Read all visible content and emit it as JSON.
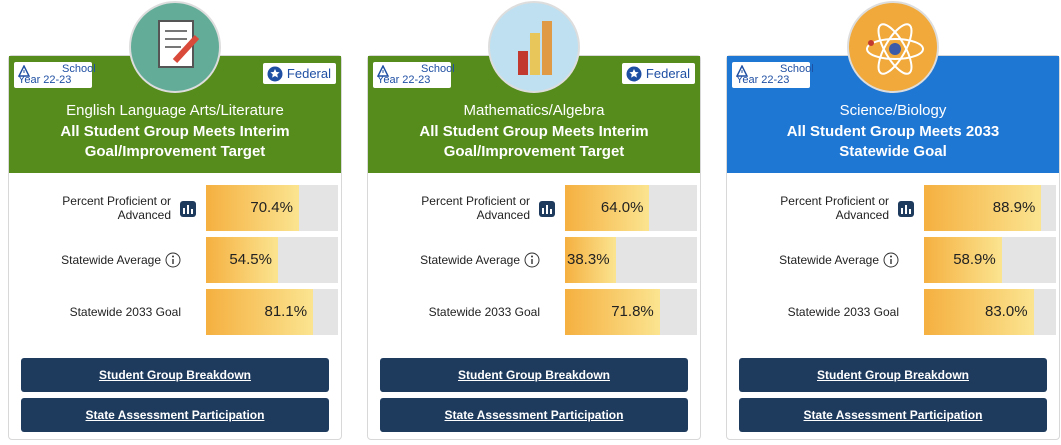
{
  "cards": [
    {
      "badge_line1": "School",
      "badge_line2": "Year 22-23",
      "federal": "Federal",
      "subject": "English Language Arts/Literature",
      "status": "All Student Group Meets Interim Goal/Improvement Target",
      "header_color": "#568c1c",
      "icon_color": "#63ad98",
      "metrics": [
        {
          "label": "Percent Proficient or Advanced",
          "value": 70.4,
          "value_label": "70.4%"
        },
        {
          "label": "Statewide Average",
          "value": 54.5,
          "value_label": "54.5%"
        },
        {
          "label": "Statewide 2033 Goal",
          "value": 81.1,
          "value_label": "81.1%"
        }
      ],
      "buttons": [
        "Student Group Breakdown",
        "State Assessment Participation"
      ]
    },
    {
      "badge_line1": "School",
      "badge_line2": "Year 22-23",
      "federal": "Federal",
      "subject": "Mathematics/Algebra",
      "status": "All Student Group Meets Interim Goal/Improvement Target",
      "header_color": "#568c1c",
      "icon_color": "#bfe0f0",
      "metrics": [
        {
          "label": "Percent Proficient or Advanced",
          "value": 64.0,
          "value_label": "64.0%"
        },
        {
          "label": "Statewide Average",
          "value": 38.3,
          "value_label": "38.3%"
        },
        {
          "label": "Statewide 2033 Goal",
          "value": 71.8,
          "value_label": "71.8%"
        }
      ],
      "buttons": [
        "Student Group Breakdown",
        "State Assessment Participation"
      ]
    },
    {
      "badge_line1": "School",
      "badge_line2": "Year 22-23",
      "subject": "Science/Biology",
      "status": "All Student Group Meets 2033 Statewide Goal",
      "header_color": "#1f77d4",
      "icon_color": "#f0a93a",
      "metrics": [
        {
          "label": "Percent Proficient or Advanced",
          "value": 88.9,
          "value_label": "88.9%"
        },
        {
          "label": "Statewide Average",
          "value": 58.9,
          "value_label": "58.9%"
        },
        {
          "label": "Statewide 2033 Goal",
          "value": 83.0,
          "value_label": "83.0%"
        }
      ],
      "buttons": [
        "Student Group Breakdown",
        "State Assessment Participation"
      ]
    }
  ]
}
